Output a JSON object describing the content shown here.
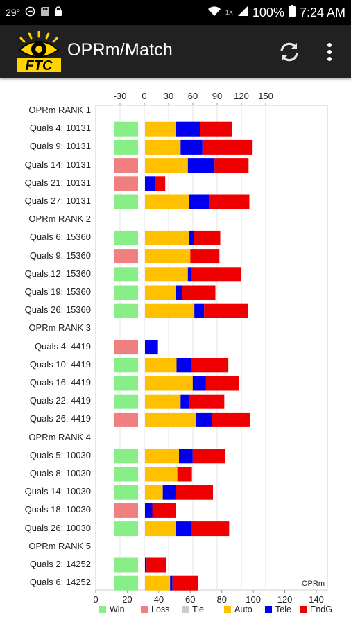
{
  "status_bar": {
    "temperature": "29°",
    "network_badge": "1X",
    "battery": "100%",
    "time": "7:24 AM",
    "icons": [
      "minus-circle-icon",
      "sd-card-icon",
      "lock-icon",
      "wifi-icon",
      "signal-icon",
      "battery-icon"
    ]
  },
  "app_bar": {
    "logo_text": "FTC",
    "title": "OPRm/Match",
    "icons": [
      "refresh-icon",
      "more-vert-icon"
    ]
  },
  "colors": {
    "Win": "#88ee88",
    "Loss": "#f08080",
    "Tie": "#cccccc",
    "Auto": "#ffc000",
    "Tele": "#0000ee",
    "EndG": "#ee0000"
  },
  "chart_data": {
    "type": "bar",
    "orientation": "horizontal",
    "stacked": true,
    "top_axis": {
      "ticks": [
        "-30",
        "0",
        "30",
        "60",
        "90",
        "120",
        "150"
      ],
      "range": [
        -30,
        150
      ]
    },
    "bottom_axis": {
      "ticks": [
        "0",
        "20",
        "40",
        "60",
        "80",
        "100",
        "120",
        "140"
      ],
      "range": [
        0,
        140
      ]
    },
    "axis_label": "OPRm",
    "legend": [
      "Win",
      "Loss",
      "Tie",
      "Auto",
      "Tele",
      "EndG"
    ],
    "grid": true,
    "rows": [
      {
        "label": "OPRm RANK 1",
        "header": true
      },
      {
        "label": "Quals 4: 10131",
        "result": "Win",
        "auto": 38,
        "tele": 30,
        "endg": 40
      },
      {
        "label": "Quals 9: 10131",
        "result": "Win",
        "auto": 44,
        "tele": 27,
        "endg": 62
      },
      {
        "label": "Quals 14: 10131",
        "result": "Loss",
        "auto": 53,
        "tele": 33,
        "endg": 42
      },
      {
        "label": "Quals 21: 10131",
        "result": "Loss",
        "auto": 0,
        "tele": 12,
        "endg": 13
      },
      {
        "label": "Quals 27: 10131",
        "result": "Win",
        "auto": 54,
        "tele": 25,
        "endg": 50
      },
      {
        "label": "OPRm RANK 2",
        "header": true
      },
      {
        "label": "Quals 6: 15360",
        "result": "Win",
        "auto": 54,
        "tele": 6,
        "endg": 33
      },
      {
        "label": "Quals 9: 15360",
        "result": "Loss",
        "auto": 56,
        "tele": 0,
        "endg": 36
      },
      {
        "label": "Quals 12: 15360",
        "result": "Win",
        "auto": 53,
        "tele": 5,
        "endg": 61
      },
      {
        "label": "Quals 19: 15360",
        "result": "Win",
        "auto": 38,
        "tele": 8,
        "endg": 41
      },
      {
        "label": "Quals 26: 15360",
        "result": "Win",
        "auto": 61,
        "tele": 12,
        "endg": 54
      },
      {
        "label": "OPRm RANK 3",
        "header": true
      },
      {
        "label": "Quals 4: 4419",
        "result": "Loss",
        "auto": 0,
        "tele": 16,
        "endg": 0
      },
      {
        "label": "Quals 10: 4419",
        "result": "Win",
        "auto": 39,
        "tele": 19,
        "endg": 45
      },
      {
        "label": "Quals 16: 4419",
        "result": "Win",
        "auto": 59,
        "tele": 16,
        "endg": 41
      },
      {
        "label": "Quals 22: 4419",
        "result": "Win",
        "auto": 44,
        "tele": 10,
        "endg": 44
      },
      {
        "label": "Quals 26: 4419",
        "result": "Loss",
        "auto": 63,
        "tele": 20,
        "endg": 47
      },
      {
        "label": "OPRm RANK 4",
        "header": true
      },
      {
        "label": "Quals 5: 10030",
        "result": "Win",
        "auto": 42,
        "tele": 17,
        "endg": 40
      },
      {
        "label": "Quals 8: 10030",
        "result": "Win",
        "auto": 40,
        "tele": 0,
        "endg": 18
      },
      {
        "label": "Quals 14: 10030",
        "result": "Win",
        "auto": 22,
        "tele": 16,
        "endg": 46
      },
      {
        "label": "Quals 18: 10030",
        "result": "Loss",
        "auto": 0,
        "tele": 9,
        "endg": 29
      },
      {
        "label": "Quals 26: 10030",
        "result": "Win",
        "auto": 38,
        "tele": 20,
        "endg": 46
      },
      {
        "label": "OPRm RANK 5",
        "header": true
      },
      {
        "label": "Quals 2: 14252",
        "result": "Win",
        "auto": 0,
        "tele": 2,
        "endg": 24
      },
      {
        "label": "Quals 6: 14252",
        "result": "Win",
        "auto": 31,
        "tele": 3,
        "endg": 32
      }
    ]
  }
}
